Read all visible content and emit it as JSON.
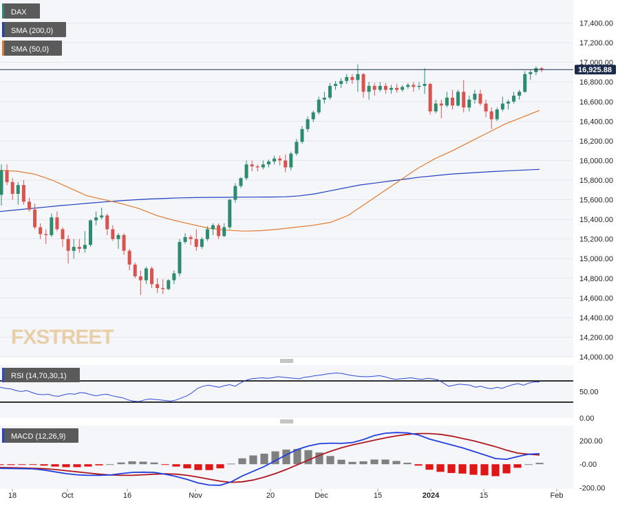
{
  "legends": {
    "main": "DAX",
    "sma200": "SMA (200,0)",
    "sma50": "SMA (50,0)",
    "rsi": "RSI (14,70,30,1)",
    "macd": "MACD (12,26,9)"
  },
  "watermark": "FXSTREET",
  "last_price_label": "16,925.88",
  "colors": {
    "background": "#f5f6fa",
    "up": "#2e8b6e",
    "down": "#d9534f",
    "sma200": "#1f3fbf",
    "sma50": "#e07a2e",
    "rsi_line": "#2b49d6",
    "macd_line": "#1f3fe0",
    "signal_line": "#b0161d",
    "hist_pos": "#808080",
    "hist_neg": "#e01515",
    "price_tag": "#1b2a4a"
  },
  "chart_data": [
    {
      "type": "candlestick",
      "title": "DAX",
      "ylim": [
        14000,
        17600
      ],
      "yticks": [
        "17,400.00",
        "17,200.00",
        "17,000.00",
        "16,800.00",
        "16,600.00",
        "16,400.00",
        "16,200.00",
        "16,000.00",
        "15,800.00",
        "15,600.00",
        "15,400.00",
        "15,200.00",
        "15,000.00",
        "14,800.00",
        "14,600.00",
        "14,400.00",
        "14,200.00",
        "14,000.00"
      ],
      "xticks": [
        "18",
        "Oct",
        "16",
        "Nov",
        "20",
        "Dec",
        "15",
        "2024",
        "15",
        "Feb"
      ],
      "last_price": 16925.88,
      "ohlc": [
        [
          15650,
          15960,
          15540,
          15900
        ],
        [
          15900,
          15960,
          15750,
          15780
        ],
        [
          15780,
          15820,
          15600,
          15660
        ],
        [
          15660,
          15780,
          15550,
          15750
        ],
        [
          15750,
          15800,
          15550,
          15580
        ],
        [
          15580,
          15620,
          15480,
          15500
        ],
        [
          15500,
          15560,
          15300,
          15320
        ],
        [
          15320,
          15360,
          15200,
          15250
        ],
        [
          15250,
          15300,
          15150,
          15240
        ],
        [
          15240,
          15460,
          15220,
          15420
        ],
        [
          15420,
          15480,
          15280,
          15300
        ],
        [
          15300,
          15320,
          15120,
          15200
        ],
        [
          15200,
          15240,
          14950,
          15080
        ],
        [
          15080,
          15200,
          15000,
          15120
        ],
        [
          15120,
          15200,
          15060,
          15100
        ],
        [
          15100,
          15280,
          15060,
          15140
        ],
        [
          15140,
          15400,
          15120,
          15390
        ],
        [
          15390,
          15480,
          15340,
          15420
        ],
        [
          15420,
          15520,
          15400,
          15440
        ],
        [
          15440,
          15460,
          15240,
          15300
        ],
        [
          15300,
          15340,
          15180,
          15200
        ],
        [
          15200,
          15260,
          15100,
          15240
        ],
        [
          15240,
          15260,
          15040,
          15080
        ],
        [
          15080,
          15100,
          14880,
          14940
        ],
        [
          14940,
          14960,
          14800,
          14820
        ],
        [
          14820,
          14880,
          14630,
          14780
        ],
        [
          14780,
          14920,
          14740,
          14900
        ],
        [
          14900,
          14920,
          14700,
          14740
        ],
        [
          14740,
          14800,
          14650,
          14700
        ],
        [
          14700,
          14790,
          14640,
          14690
        ],
        [
          14690,
          14790,
          14680,
          14780
        ],
        [
          14780,
          14880,
          14740,
          14850
        ],
        [
          14850,
          15200,
          14820,
          15170
        ],
        [
          15170,
          15260,
          15150,
          15220
        ],
        [
          15220,
          15240,
          15140,
          15200
        ],
        [
          15200,
          15300,
          15080,
          15120
        ],
        [
          15120,
          15220,
          15100,
          15200
        ],
        [
          15200,
          15330,
          15180,
          15300
        ],
        [
          15300,
          15360,
          15240,
          15340
        ],
        [
          15340,
          15360,
          15200,
          15230
        ],
        [
          15230,
          15360,
          15220,
          15320
        ],
        [
          15320,
          15610,
          15300,
          15600
        ],
        [
          15600,
          15770,
          15570,
          15740
        ],
        [
          15740,
          15830,
          15720,
          15820
        ],
        [
          15820,
          16000,
          15800,
          15960
        ],
        [
          15960,
          16000,
          15890,
          15940
        ],
        [
          15940,
          15960,
          15890,
          15930
        ],
        [
          15930,
          16000,
          15910,
          15960
        ],
        [
          15960,
          16010,
          15930,
          15990
        ],
        [
          15990,
          16050,
          15960,
          16020
        ],
        [
          16020,
          16050,
          15950,
          16000
        ],
        [
          16000,
          16060,
          15880,
          15930
        ],
        [
          15930,
          16090,
          15900,
          16070
        ],
        [
          16070,
          16220,
          16050,
          16190
        ],
        [
          16190,
          16350,
          16170,
          16320
        ],
        [
          16320,
          16450,
          16290,
          16420
        ],
        [
          16420,
          16510,
          16390,
          16490
        ],
        [
          16490,
          16650,
          16470,
          16620
        ],
        [
          16620,
          16700,
          16580,
          16640
        ],
        [
          16640,
          16790,
          16620,
          16760
        ],
        [
          16760,
          16810,
          16720,
          16780
        ],
        [
          16780,
          16840,
          16740,
          16810
        ],
        [
          16810,
          16880,
          16780,
          16850
        ],
        [
          16850,
          16880,
          16780,
          16820
        ],
        [
          16820,
          16980,
          16700,
          16880
        ],
        [
          16880,
          16890,
          16640,
          16700
        ],
        [
          16700,
          16800,
          16620,
          16760
        ],
        [
          16760,
          16790,
          16660,
          16720
        ],
        [
          16720,
          16800,
          16700,
          16760
        ],
        [
          16760,
          16790,
          16680,
          16720
        ],
        [
          16720,
          16770,
          16680,
          16740
        ],
        [
          16740,
          16780,
          16690,
          16720
        ],
        [
          16720,
          16770,
          16700,
          16750
        ],
        [
          16750,
          16790,
          16730,
          16770
        ],
        [
          16770,
          16800,
          16700,
          16750
        ],
        [
          16750,
          16800,
          16720,
          16760
        ],
        [
          16760,
          16940,
          16680,
          16780
        ],
        [
          16780,
          16790,
          16470,
          16500
        ],
        [
          16500,
          16620,
          16480,
          16580
        ],
        [
          16580,
          16620,
          16430,
          16560
        ],
        [
          16560,
          16700,
          16540,
          16640
        ],
        [
          16640,
          16720,
          16520,
          16560
        ],
        [
          16560,
          16720,
          16550,
          16700
        ],
        [
          16700,
          16820,
          16490,
          16540
        ],
        [
          16540,
          16660,
          16500,
          16620
        ],
        [
          16620,
          16720,
          16580,
          16680
        ],
        [
          16680,
          16720,
          16560,
          16580
        ],
        [
          16580,
          16620,
          16440,
          16500
        ],
        [
          16500,
          16540,
          16320,
          16420
        ],
        [
          16420,
          16540,
          16400,
          16520
        ],
        [
          16520,
          16650,
          16500,
          16580
        ],
        [
          16580,
          16620,
          16520,
          16600
        ],
        [
          16600,
          16700,
          16580,
          16660
        ],
        [
          16660,
          16720,
          16620,
          16700
        ],
        [
          16700,
          16910,
          16690,
          16880
        ],
        [
          16880,
          16920,
          16820,
          16900
        ],
        [
          16900,
          16960,
          16870,
          16940
        ],
        [
          16940,
          16950,
          16900,
          16925.88
        ]
      ],
      "sma200": [
        15480,
        15495,
        15510,
        15525,
        15540,
        15553,
        15566,
        15578,
        15590,
        15600,
        15608,
        15614,
        15619,
        15622,
        15624,
        15625,
        15626,
        15627,
        15628,
        15630,
        15640,
        15660,
        15690,
        15720,
        15750,
        15770,
        15790,
        15810,
        15830,
        15845,
        15860,
        15870,
        15880,
        15888,
        15896,
        15903,
        15910
      ],
      "sma50": [
        15900,
        15890,
        15860,
        15800,
        15720,
        15640,
        15600,
        15560,
        15510,
        15440,
        15390,
        15350,
        15310,
        15290,
        15280,
        15285,
        15300,
        15320,
        15340,
        15370,
        15440,
        15560,
        15680,
        15800,
        15920,
        16020,
        16100,
        16190,
        16280,
        16370,
        16440,
        16510
      ],
      "series": [
        {
          "name": "SMA (200,0)",
          "type": "line"
        },
        {
          "name": "SMA (50,0)",
          "type": "line"
        }
      ]
    },
    {
      "type": "line",
      "title": "RSI (14,70,30,1)",
      "ylim": [
        0,
        100
      ],
      "yticks": [
        "50.00",
        "0.00"
      ],
      "bands": [
        70,
        30
      ],
      "values": [
        58,
        56,
        55,
        52,
        50,
        52,
        48,
        45,
        44,
        45,
        42,
        41,
        44,
        46,
        45,
        48,
        47,
        44,
        42,
        44,
        45,
        42,
        40,
        38,
        34,
        32,
        31,
        34,
        36,
        35,
        34,
        33,
        32,
        34,
        38,
        42,
        48,
        56,
        60,
        62,
        60,
        58,
        61,
        63,
        60,
        66,
        71,
        74,
        75,
        76,
        75,
        76,
        78,
        77,
        76,
        75,
        74,
        77,
        78,
        80,
        81,
        83,
        84,
        85,
        84,
        82,
        80,
        79,
        78,
        78,
        79,
        80,
        78,
        75,
        73,
        74,
        75,
        76,
        74,
        73,
        75,
        74,
        72,
        66,
        60,
        62,
        64,
        63,
        62,
        58,
        60,
        57,
        55,
        58,
        56,
        60,
        63,
        65,
        62,
        66,
        68,
        68
      ]
    },
    {
      "type": "line",
      "title": "MACD (12,26,9)",
      "ylim": [
        -210,
        330
      ],
      "yticks": [
        "200.00",
        "-0.00",
        "-200.00"
      ],
      "macd": [
        -35,
        -37,
        -38,
        -40,
        -50,
        -65,
        -80,
        -90,
        -95,
        -95,
        -92,
        -80,
        -70,
        -68,
        -70,
        -85,
        -105,
        -130,
        -160,
        -178,
        -180,
        -150,
        -100,
        -60,
        -20,
        30,
        80,
        125,
        155,
        175,
        180,
        178,
        185,
        210,
        245,
        265,
        270,
        268,
        250,
        215,
        190,
        165,
        140,
        110,
        80,
        48,
        42,
        65,
        85,
        90
      ],
      "signal": [
        -28,
        -30,
        -32,
        -35,
        -38,
        -45,
        -55,
        -65,
        -75,
        -85,
        -92,
        -95,
        -95,
        -90,
        -85,
        -82,
        -85,
        -95,
        -110,
        -128,
        -145,
        -155,
        -150,
        -135,
        -110,
        -80,
        -45,
        -5,
        35,
        75,
        110,
        140,
        165,
        185,
        205,
        225,
        242,
        255,
        262,
        262,
        255,
        240,
        220,
        200,
        175,
        150,
        120,
        95,
        85,
        78
      ]
    }
  ]
}
